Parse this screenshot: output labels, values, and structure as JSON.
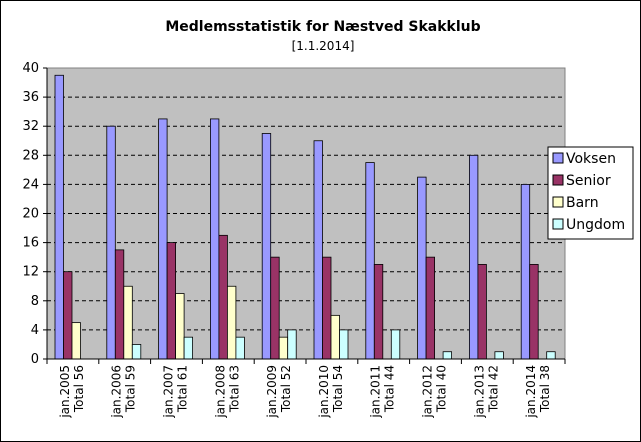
{
  "chart_data": {
    "type": "bar",
    "title": "Medlemsstatistik for Næstved Skakklub",
    "subtitle": "[1.1.2014]",
    "categories": [
      [
        "jan.2005",
        "Total 56"
      ],
      [
        "jan.2006",
        "Total 59"
      ],
      [
        "jan.2007",
        "Total 61"
      ],
      [
        "jan.2008",
        "Total 63"
      ],
      [
        "jan.2009",
        "Total 52"
      ],
      [
        "jan.2010",
        "Total 54"
      ],
      [
        "jan.2011",
        "Total 44"
      ],
      [
        "jan.2012",
        "Total 40"
      ],
      [
        "jan.2013",
        "Total 42"
      ],
      [
        "jan.2014",
        "Total 38"
      ]
    ],
    "series": [
      {
        "name": "Voksen",
        "color": "#9999ff",
        "values": [
          39,
          32,
          33,
          33,
          31,
          30,
          27,
          25,
          28,
          24
        ]
      },
      {
        "name": "Senior",
        "color": "#993366",
        "values": [
          12,
          15,
          16,
          17,
          14,
          14,
          13,
          14,
          13,
          13
        ]
      },
      {
        "name": "Barn",
        "color": "#ffffcc",
        "values": [
          5,
          10,
          9,
          10,
          3,
          6,
          0,
          0,
          0,
          0
        ]
      },
      {
        "name": "Ungdom",
        "color": "#ccffff",
        "values": [
          0,
          2,
          3,
          3,
          4,
          4,
          4,
          1,
          1,
          1
        ]
      }
    ],
    "ylim": [
      0,
      40
    ],
    "yticks": [
      0,
      4,
      8,
      12,
      16,
      20,
      24,
      28,
      32,
      36,
      40
    ],
    "grid": true,
    "plot_background": "#c0c0c0",
    "legend_position": "right"
  }
}
